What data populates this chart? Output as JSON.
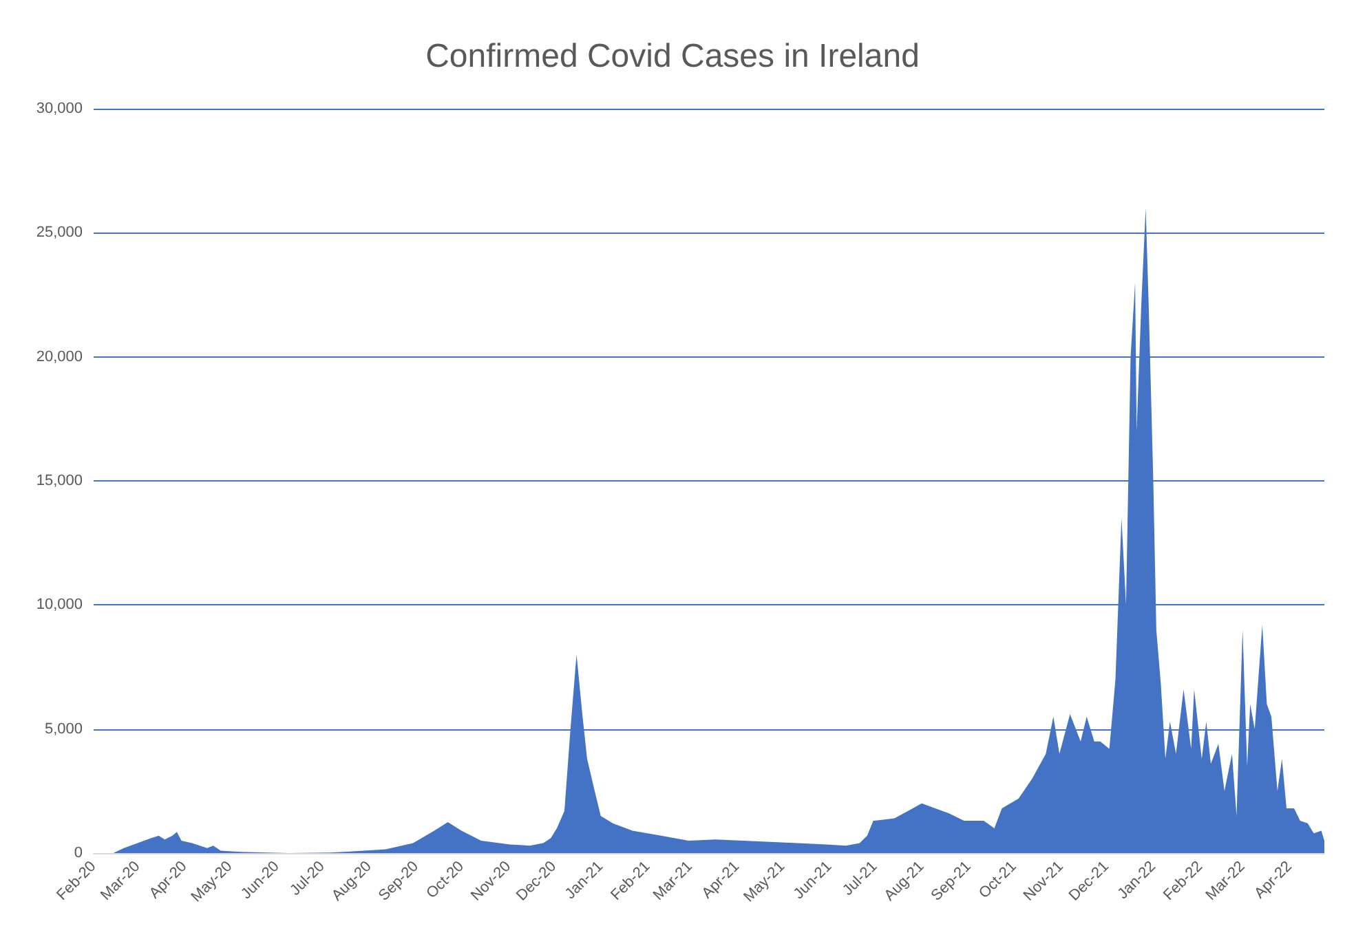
{
  "chart_data": {
    "type": "area",
    "title": "Confirmed Covid Cases in Ireland",
    "x": [
      "2020-02-14",
      "2020-02-21",
      "2020-03-01",
      "2020-03-10",
      "2020-03-15",
      "2020-03-19",
      "2020-03-24",
      "2020-03-27",
      "2020-03-30",
      "2020-04-06",
      "2020-04-16",
      "2020-04-20",
      "2020-04-25",
      "2020-05-08",
      "2020-05-26",
      "2020-06-09",
      "2020-07-06",
      "2020-07-25",
      "2020-08-12",
      "2020-08-30",
      "2020-09-13",
      "2020-09-22",
      "2020-10-01",
      "2020-10-14",
      "2020-11-02",
      "2020-11-15",
      "2020-11-24",
      "2020-11-29",
      "2020-12-03",
      "2020-12-08",
      "2020-12-12",
      "2020-12-16",
      "2020-12-20",
      "2020-12-23",
      "2020-12-28",
      "2021-01-01",
      "2021-01-09",
      "2021-01-22",
      "2021-02-10",
      "2021-02-28",
      "2021-03-18",
      "2021-04-05",
      "2021-04-23",
      "2021-05-11",
      "2021-05-30",
      "2021-06-12",
      "2021-06-21",
      "2021-06-26",
      "2021-06-30",
      "2021-07-14",
      "2021-07-23",
      "2021-08-01",
      "2021-08-10",
      "2021-08-19",
      "2021-08-29",
      "2021-09-11",
      "2021-09-18",
      "2021-09-23",
      "2021-10-04",
      "2021-10-13",
      "2021-10-22",
      "2021-10-27",
      "2021-10-31",
      "2021-11-07",
      "2021-11-14",
      "2021-11-18",
      "2021-11-23",
      "2021-11-27",
      "2021-12-03",
      "2021-12-07",
      "2021-12-11",
      "2021-12-14",
      "2021-12-17",
      "2021-12-20",
      "2021-12-21",
      "2021-12-24",
      "2021-12-27",
      "2021-12-29",
      "2022-01-01",
      "2022-01-03",
      "2022-01-06",
      "2022-01-09",
      "2022-01-12",
      "2022-01-16",
      "2022-01-21",
      "2022-01-26",
      "2022-01-28",
      "2022-02-02",
      "2022-02-05",
      "2022-02-08",
      "2022-02-13",
      "2022-02-17",
      "2022-02-22",
      "2022-02-25",
      "2022-03-01",
      "2022-03-04",
      "2022-03-06",
      "2022-03-09",
      "2022-03-14",
      "2022-03-17",
      "2022-03-20",
      "2022-03-24",
      "2022-03-27",
      "2022-03-30",
      "2022-04-04",
      "2022-04-08",
      "2022-04-13",
      "2022-04-17",
      "2022-04-22",
      "2022-04-24"
    ],
    "series": [
      {
        "color": "#4472c4",
        "values": [
          0,
          200,
          400,
          600,
          700,
          550,
          700,
          850,
          500,
          400,
          200,
          300,
          100,
          50,
          20,
          0,
          20,
          80,
          150,
          400,
          900,
          1250,
          900,
          500,
          350,
          300,
          400,
          600,
          1000,
          1700,
          5000,
          8000,
          5500,
          3800,
          2500,
          1500,
          1200,
          900,
          700,
          500,
          550,
          500,
          450,
          400,
          350,
          300,
          400,
          700,
          1300,
          1400,
          1700,
          2000,
          1800,
          1600,
          1300,
          1300,
          1000,
          1800,
          2200,
          3000,
          4000,
          5500,
          4000,
          5600,
          4500,
          5500,
          4500,
          4500,
          4200,
          7000,
          13500,
          10000,
          20000,
          23000,
          17000,
          22000,
          26000,
          22000,
          15000,
          9000,
          6800,
          3800,
          5300,
          4000,
          6600,
          4200,
          6600,
          3800,
          5300,
          3600,
          4400,
          2500,
          4000,
          1500,
          9000,
          3500,
          6000,
          5000,
          9200,
          6000,
          5500,
          2500,
          3800,
          1800,
          1800,
          1300,
          1200,
          800,
          900,
          500
        ]
      }
    ],
    "xlim": [
      "2020-02-01",
      "2022-04-24"
    ],
    "xticks": [
      {
        "value": "2020-02-01",
        "label": "Feb-20"
      },
      {
        "value": "2020-03-01",
        "label": "Mar-20"
      },
      {
        "value": "2020-04-01",
        "label": "Apr-20"
      },
      {
        "value": "2020-05-01",
        "label": "May-20"
      },
      {
        "value": "2020-06-01",
        "label": "Jun-20"
      },
      {
        "value": "2020-07-01",
        "label": "Jul-20"
      },
      {
        "value": "2020-08-01",
        "label": "Aug-20"
      },
      {
        "value": "2020-09-01",
        "label": "Sep-20"
      },
      {
        "value": "2020-10-01",
        "label": "Oct-20"
      },
      {
        "value": "2020-11-01",
        "label": "Nov-20"
      },
      {
        "value": "2020-12-01",
        "label": "Dec-20"
      },
      {
        "value": "2021-01-01",
        "label": "Jan-21"
      },
      {
        "value": "2021-02-01",
        "label": "Feb-21"
      },
      {
        "value": "2021-03-01",
        "label": "Mar-21"
      },
      {
        "value": "2021-04-01",
        "label": "Apr-21"
      },
      {
        "value": "2021-05-01",
        "label": "May-21"
      },
      {
        "value": "2021-06-01",
        "label": "Jun-21"
      },
      {
        "value": "2021-07-01",
        "label": "Jul-21"
      },
      {
        "value": "2021-08-01",
        "label": "Aug-21"
      },
      {
        "value": "2021-09-01",
        "label": "Sep-21"
      },
      {
        "value": "2021-10-01",
        "label": "Oct-21"
      },
      {
        "value": "2021-11-01",
        "label": "Nov-21"
      },
      {
        "value": "2021-12-01",
        "label": "Dec-21"
      },
      {
        "value": "2022-01-01",
        "label": "Jan-22"
      },
      {
        "value": "2022-02-01",
        "label": "Feb-22"
      },
      {
        "value": "2022-03-01",
        "label": "Mar-22"
      },
      {
        "value": "2022-04-01",
        "label": "Apr-22"
      }
    ],
    "ylim": [
      0,
      30000
    ],
    "yticks": [
      {
        "value": 0,
        "label": "0"
      },
      {
        "value": 5000,
        "label": "5,000"
      },
      {
        "value": 10000,
        "label": "10,000"
      },
      {
        "value": 15000,
        "label": "15,000"
      },
      {
        "value": 20000,
        "label": "20,000"
      },
      {
        "value": 25000,
        "label": "25,000"
      },
      {
        "value": 30000,
        "label": "30,000"
      }
    ],
    "grid": "y"
  }
}
